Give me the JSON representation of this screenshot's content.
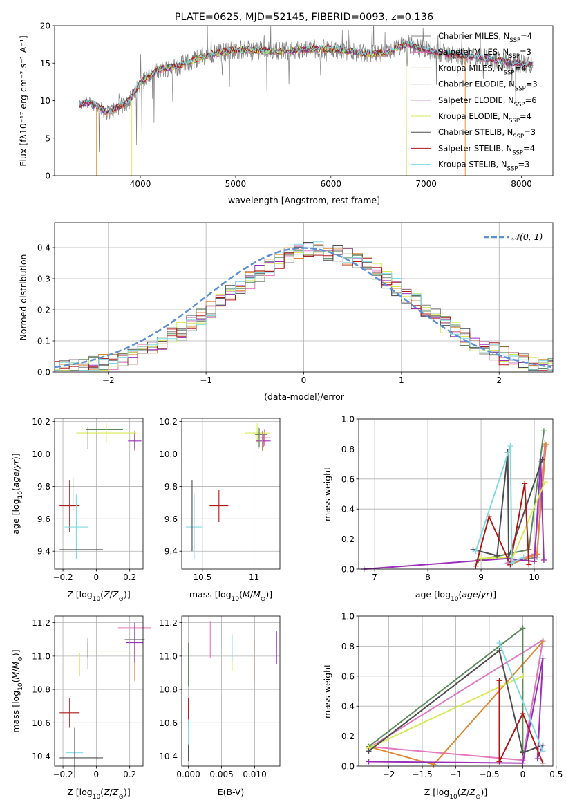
{
  "figure_title": "PLATE=0625, MJD=52145, FIBERID=0093, z=0.136",
  "colors": {
    "Chabrier MILES": "#808080",
    "Salpeter MILES": "#e377c2",
    "Kroupa MILES": "#e0882f",
    "Chabrier ELODIE": "#5b8a5b",
    "Salpeter ELODIE": "#9b30b8",
    "Kroupa ELODIE": "#d6ea55",
    "Chabrier STELIB": "#4d4d4d",
    "Salpeter STELIB": "#b01818",
    "Kroupa STELIB": "#7fdbe0",
    "normal": "#5b8fd6"
  },
  "chart_data": [
    {
      "id": "spectrum",
      "type": "line",
      "title": "PLATE=0625, MJD=52145, FIBERID=0093, z=0.136",
      "xlabel": "wavelength [Angstrom, rest frame]",
      "ylabel": "Flux [fλ10⁻¹⁷ erg cm⁻² s⁻¹ A⁻¹]",
      "xlim": [
        3100,
        8330
      ],
      "ylim": [
        0,
        20
      ],
      "xticks": [
        4000,
        5000,
        6000,
        7000,
        8000
      ],
      "yticks": [
        0,
        5,
        10,
        15,
        20
      ],
      "legend_position": "right",
      "legend": [
        {
          "base": "Chabrier MILES, N",
          "sub": "SSP",
          "tail": "=4"
        },
        {
          "base": "Salpeter MILES, N",
          "sub": "SSP",
          "tail": "=3"
        },
        {
          "base": "Kroupa MILES, N",
          "sub": "SSP",
          "tail": "=4"
        },
        {
          "base": "Chabrier ELODIE, N",
          "sub": "SSP",
          "tail": "=3"
        },
        {
          "base": "Salpeter ELODIE, N",
          "sub": "SSP",
          "tail": "=6"
        },
        {
          "base": "Kroupa ELODIE, N",
          "sub": "SSP",
          "tail": "=4"
        },
        {
          "base": "Chabrier STELIB, N",
          "sub": "SSP",
          "tail": "=3"
        },
        {
          "base": "Salpeter STELIB, N",
          "sub": "SSP",
          "tail": "=4"
        },
        {
          "base": "Kroupa STELIB, N",
          "sub": "SSP",
          "tail": "=3"
        }
      ],
      "continuum": [
        [
          3360,
          9.4
        ],
        [
          3450,
          9.8
        ],
        [
          3550,
          9.2
        ],
        [
          3650,
          8.4
        ],
        [
          3760,
          9.0
        ],
        [
          3900,
          10.2
        ],
        [
          4000,
          12.4
        ],
        [
          4200,
          14.2
        ],
        [
          4400,
          14.6
        ],
        [
          4600,
          15.6
        ],
        [
          4800,
          16.3
        ],
        [
          5000,
          16.8
        ],
        [
          5200,
          16.7
        ],
        [
          5500,
          16.6
        ],
        [
          5800,
          16.9
        ],
        [
          6100,
          16.8
        ],
        [
          6400,
          16.2
        ],
        [
          6600,
          16.4
        ],
        [
          6800,
          17.6
        ],
        [
          7000,
          16.7
        ],
        [
          7300,
          16.0
        ],
        [
          7600,
          15.7
        ],
        [
          7900,
          15.0
        ],
        [
          8100,
          14.8
        ]
      ],
      "absorption_dips": [
        [
          3934,
          0.5
        ],
        [
          4340,
          3.5
        ],
        [
          4861,
          2.5
        ],
        [
          5175,
          2.0
        ],
        [
          5890,
          4.0
        ],
        [
          6563,
          2.0
        ],
        [
          6800,
          3.0
        ],
        [
          7600,
          2.0
        ]
      ],
      "truncations": [
        {
          "series": "Kroupa MILES",
          "xmin": 3540,
          "xmax": 7410
        },
        {
          "series": "Kroupa ELODIE",
          "xmin": 3910,
          "xmax": 6795
        },
        {
          "series": "Chabrier MILES",
          "xmin": 3540,
          "xmax": 7410
        }
      ]
    },
    {
      "id": "residuals",
      "type": "histogram",
      "xlabel": "(data-model)/error",
      "ylabel": "Normed distribution",
      "xlim": [
        -2.55,
        2.55
      ],
      "ylim": [
        0,
        0.48
      ],
      "xticks": [
        -2,
        -1,
        0,
        1,
        2
      ],
      "yticks": [
        0.0,
        0.1,
        0.2,
        0.3,
        0.4
      ],
      "grid": true,
      "bin_width": 0.1,
      "reference_curve": {
        "label": "N(0,1)",
        "label_display": "𝒩(0, 1)",
        "mean": 0,
        "sigma": 1
      }
    },
    {
      "id": "age_vs_Z",
      "type": "errorbar",
      "xlabel": "Z [log₁₀(Z/Z⊙)]",
      "ylabel": "age  [log₁₀(age/yr)]",
      "xlim": [
        -0.25,
        0.28
      ],
      "ylim": [
        9.29,
        10.22
      ],
      "xticks": [
        -0.2,
        0.0,
        0.2
      ],
      "yticks": [
        9.4,
        9.6,
        9.8,
        10.0,
        10.2
      ],
      "grid": true,
      "points": [
        {
          "series": "Chabrier MILES",
          "x": -0.12,
          "y": 10.12,
          "xerr": 0.0,
          "yerr": 0.0
        },
        {
          "series": "Salpeter MILES",
          "x": 0.23,
          "y": 10.08,
          "xerr": 0.005,
          "yerr": 0.06
        },
        {
          "series": "Kroupa MILES",
          "x": 0.23,
          "y": 10.08,
          "xerr": 0.005,
          "yerr": 0.06
        },
        {
          "series": "Chabrier ELODIE",
          "x": 0.05,
          "y": 10.15,
          "xerr": 0.11,
          "yerr": 0.0
        },
        {
          "series": "Salpeter ELODIE",
          "x": 0.23,
          "y": 10.08,
          "xerr": 0.04,
          "yerr": 0.05
        },
        {
          "series": "Kroupa ELODIE",
          "x": 0.06,
          "y": 10.13,
          "xerr": 0.18,
          "yerr": 0.06
        },
        {
          "series": "Chabrier STELIB",
          "x": -0.05,
          "y": 10.1,
          "xerr": 0.0,
          "yerr": 0.07
        },
        {
          "series": "Salpeter STELIB",
          "x": -0.16,
          "y": 9.68,
          "xerr": 0.06,
          "yerr": 0.16
        },
        {
          "series": "Kroupa STELIB",
          "x": -0.12,
          "y": 9.55,
          "xerr": 0.07,
          "yerr": 0.2
        },
        {
          "series": "Chabrier STELIB",
          "x": -0.09,
          "y": 9.41,
          "xerr": 0.13,
          "yerr": 0.0
        },
        {
          "series": "Chabrier STELIB",
          "x": -0.14,
          "y": 9.75,
          "xerr": 0.0,
          "yerr": 0.1
        }
      ]
    },
    {
      "id": "age_vs_mass",
      "type": "errorbar",
      "xlabel": "mass [log₁₀(M/M⊙)]",
      "ylabel": "",
      "xlim": [
        10.3,
        11.25
      ],
      "ylim": [
        9.29,
        10.22
      ],
      "xticks": [
        10.5,
        11.0
      ],
      "yticks": [
        9.4,
        9.6,
        9.8,
        10.0,
        10.2
      ],
      "grid": true,
      "points": [
        {
          "series": "Salpeter MILES",
          "x": 11.1,
          "y": 10.1,
          "xerr": 0.06,
          "yerr": 0.05
        },
        {
          "series": "Kroupa ELODIE",
          "x": 11.03,
          "y": 10.13,
          "xerr": 0.12,
          "yerr": 0.06
        },
        {
          "series": "Chabrier MILES",
          "x": 11.07,
          "y": 10.12,
          "xerr": 0.06,
          "yerr": 0.0
        },
        {
          "series": "Salpeter ELODIE",
          "x": 11.09,
          "y": 10.08,
          "xerr": 0.07,
          "yerr": 0.04
        },
        {
          "series": "Chabrier ELODIE",
          "x": 11.05,
          "y": 10.1,
          "xerr": 0.0,
          "yerr": 0.06
        },
        {
          "series": "Kroupa MILES",
          "x": 11.08,
          "y": 10.08,
          "xerr": 0.0,
          "yerr": 0.06
        },
        {
          "series": "Chabrier STELIB",
          "x": 11.04,
          "y": 10.1,
          "xerr": 0.0,
          "yerr": 0.07
        },
        {
          "series": "Salpeter STELIB",
          "x": 10.66,
          "y": 9.68,
          "xerr": 0.09,
          "yerr": 0.1
        },
        {
          "series": "Kroupa STELIB",
          "x": 10.42,
          "y": 9.55,
          "xerr": 0.08,
          "yerr": 0.2
        },
        {
          "series": "Chabrier STELIB",
          "x": 10.4,
          "y": 9.62,
          "xerr": 0.0,
          "yerr": 0.22
        }
      ]
    },
    {
      "id": "massweight_vs_age",
      "type": "line",
      "xlabel": "age  [log₁₀(age/yr)]",
      "ylabel": "mass weight",
      "xlim": [
        6.7,
        10.35
      ],
      "ylim": [
        0,
        1.0
      ],
      "xticks": [
        7,
        8,
        9,
        10
      ],
      "yticks": [
        0.0,
        0.2,
        0.4,
        0.6,
        0.8,
        1.0
      ],
      "grid": true,
      "series": [
        {
          "name": "Chabrier MILES",
          "points": [
            [
              9.52,
              0.04
            ],
            [
              10.05,
              0.08
            ],
            [
              10.2,
              0.84
            ]
          ]
        },
        {
          "name": "Salpeter MILES",
          "points": [
            [
              9.5,
              0.04
            ],
            [
              10.0,
              0.1
            ],
            [
              10.2,
              0.82
            ]
          ]
        },
        {
          "name": "Kroupa MILES",
          "points": [
            [
              9.55,
              0.03
            ],
            [
              10.05,
              0.1
            ],
            [
              10.22,
              0.83
            ]
          ]
        },
        {
          "name": "Chabrier ELODIE",
          "points": [
            [
              8.95,
              0.06
            ],
            [
              9.9,
              0.13
            ],
            [
              10.18,
              0.92
            ]
          ]
        },
        {
          "name": "Salpeter ELODIE",
          "points": [
            [
              6.8,
              0.0
            ],
            [
              9.5,
              0.07
            ],
            [
              10.0,
              0.05
            ],
            [
              10.12,
              0.72
            ],
            [
              10.18,
              0.06
            ]
          ]
        },
        {
          "name": "Kroupa ELODIE",
          "points": [
            [
              9.0,
              0.07
            ],
            [
              9.6,
              0.08
            ],
            [
              10.2,
              0.58
            ]
          ]
        },
        {
          "name": "Chabrier STELIB",
          "points": [
            [
              8.85,
              0.13
            ],
            [
              9.3,
              0.09
            ],
            [
              9.5,
              0.78
            ],
            [
              9.52,
              0.08
            ],
            [
              10.15,
              0.73
            ]
          ]
        },
        {
          "name": "Salpeter STELIB",
          "points": [
            [
              8.9,
              0.02
            ],
            [
              9.15,
              0.35
            ],
            [
              9.55,
              0.03
            ],
            [
              9.82,
              0.57
            ],
            [
              9.9,
              0.03
            ]
          ]
        },
        {
          "name": "Kroupa STELIB",
          "points": [
            [
              8.9,
              0.12
            ],
            [
              9.55,
              0.82
            ],
            [
              9.58,
              0.04
            ],
            [
              9.8,
              0.08
            ]
          ]
        }
      ]
    },
    {
      "id": "mass_vs_Z",
      "type": "errorbar",
      "xlabel": "Z [log₁₀(Z/Z⊙)]",
      "ylabel": "mass [log₁₀(M/M⊙)]",
      "xlim": [
        -0.25,
        0.28
      ],
      "ylim": [
        10.34,
        11.24
      ],
      "xticks": [
        -0.2,
        0.0,
        0.2
      ],
      "yticks": [
        10.4,
        10.6,
        10.8,
        11.0,
        11.2
      ],
      "grid": true,
      "points": [
        {
          "series": "Salpeter MILES",
          "x": 0.23,
          "y": 11.17,
          "xerr": 0.1,
          "yerr": 0.0
        },
        {
          "series": "Chabrier MILES",
          "x": 0.23,
          "y": 11.1,
          "xerr": 0.06,
          "yerr": 0.08
        },
        {
          "series": "Kroupa MILES",
          "x": 0.23,
          "y": 10.95,
          "xerr": 0.0,
          "yerr": 0.1
        },
        {
          "series": "Salpeter ELODIE",
          "x": 0.23,
          "y": 11.08,
          "xerr": 0.05,
          "yerr": 0.12
        },
        {
          "series": "Kroupa ELODIE",
          "x": 0.06,
          "y": 11.03,
          "xerr": 0.18,
          "yerr": 0.0
        },
        {
          "series": "Kroupa ELODIE",
          "x": -0.1,
          "y": 10.95,
          "xerr": 0.0,
          "yerr": 0.07
        },
        {
          "series": "Chabrier ELODIE",
          "x": -0.05,
          "y": 11.0,
          "xerr": 0.0,
          "yerr": 0.08
        },
        {
          "series": "Chabrier STELIB",
          "x": -0.05,
          "y": 11.05,
          "xerr": 0.0,
          "yerr": 0.06
        },
        {
          "series": "Salpeter STELIB",
          "x": -0.16,
          "y": 10.66,
          "xerr": 0.06,
          "yerr": 0.09
        },
        {
          "series": "Kroupa STELIB",
          "x": -0.13,
          "y": 10.42,
          "xerr": 0.05,
          "yerr": 0.0
        },
        {
          "series": "Chabrier STELIB",
          "x": -0.13,
          "y": 10.42,
          "xerr": 0.0,
          "yerr": 0.15
        },
        {
          "series": "Chabrier STELIB",
          "x": -0.09,
          "y": 10.39,
          "xerr": 0.13,
          "yerr": 0.0
        }
      ]
    },
    {
      "id": "mass_vs_ebv",
      "type": "errorbar",
      "xlabel": "E(B-V)",
      "ylabel": "",
      "xlim": [
        -0.001,
        0.0138
      ],
      "ylim": [
        10.34,
        11.24
      ],
      "xticks": [
        0.0,
        0.005,
        0.01
      ],
      "xticklabels": [
        "0.000",
        "0.005",
        "0.010"
      ],
      "yticks": [
        10.4,
        10.6,
        10.8,
        11.0,
        11.2
      ],
      "grid": true,
      "points": [
        {
          "series": "Chabrier ELODIE",
          "x": 0.0,
          "y": 10.95,
          "xerr": 0.0,
          "yerr": 0.13
        },
        {
          "series": "Salpeter STELIB",
          "x": 0.0,
          "y": 10.66,
          "xerr": 0.0,
          "yerr": 0.09
        },
        {
          "series": "Kroupa STELIB",
          "x": 0.0,
          "y": 10.5,
          "xerr": 0.0,
          "yerr": 0.12
        },
        {
          "series": "Chabrier STELIB",
          "x": 0.0,
          "y": 10.42,
          "xerr": 0.0,
          "yerr": 0.05
        },
        {
          "series": "Salpeter MILES",
          "x": 0.0033,
          "y": 11.1,
          "xerr": 0.0,
          "yerr": 0.11
        },
        {
          "series": "Kroupa ELODIE",
          "x": 0.0066,
          "y": 11.01,
          "xerr": 0.0,
          "yerr": 0.1
        },
        {
          "series": "Kroupa STELIB",
          "x": 0.0066,
          "y": 11.05,
          "xerr": 0.0,
          "yerr": 0.08
        },
        {
          "series": "Kroupa MILES",
          "x": 0.0099,
          "y": 10.97,
          "xerr": 0.0,
          "yerr": 0.13
        },
        {
          "series": "Salpeter ELODIE",
          "x": 0.0133,
          "y": 11.05,
          "xerr": 0.0,
          "yerr": 0.1
        }
      ]
    },
    {
      "id": "massweight_vs_Z",
      "type": "line",
      "xlabel": "Z [log₁₀(Z/Z⊙)]",
      "ylabel": "mass weight",
      "xlim": [
        -2.45,
        0.45
      ],
      "ylim": [
        0,
        1.0
      ],
      "xticks": [
        -2.0,
        -1.5,
        -1.0,
        -0.5,
        0.0,
        0.5
      ],
      "yticks": [
        0.0,
        0.2,
        0.4,
        0.6,
        0.8,
        1.0
      ],
      "grid": true,
      "series": [
        {
          "name": "Chabrier MILES",
          "points": [
            [
              0.0,
              0.04
            ],
            [
              0.3,
              0.84
            ]
          ]
        },
        {
          "name": "Salpeter MILES",
          "points": [
            [
              -2.3,
              0.13
            ],
            [
              0.0,
              0.04
            ],
            [
              0.3,
              0.84
            ],
            [
              -2.3,
              0.12
            ]
          ]
        },
        {
          "name": "Kroupa MILES",
          "points": [
            [
              -2.3,
              0.13
            ],
            [
              -1.33,
              0.01
            ],
            [
              0.3,
              0.83
            ]
          ]
        },
        {
          "name": "Chabrier ELODIE",
          "points": [
            [
              -2.3,
              0.13
            ],
            [
              0.0,
              0.92
            ],
            [
              0.0,
              0.1
            ]
          ]
        },
        {
          "name": "Salpeter ELODIE",
          "points": [
            [
              -2.3,
              0.03
            ],
            [
              0.0,
              0.02
            ],
            [
              0.3,
              0.72
            ],
            [
              0.22,
              0.05
            ],
            [
              0.3,
              0.14
            ]
          ]
        },
        {
          "name": "Kroupa ELODIE",
          "points": [
            [
              -2.3,
              0.12
            ],
            [
              0.0,
              0.6
            ]
          ]
        },
        {
          "name": "Chabrier STELIB",
          "points": [
            [
              -2.3,
              0.1
            ],
            [
              -0.35,
              0.77
            ],
            [
              0.0,
              0.09
            ],
            [
              0.3,
              0.14
            ]
          ]
        },
        {
          "name": "Salpeter STELIB",
          "points": [
            [
              -0.35,
              0.57
            ],
            [
              -0.35,
              0.03
            ],
            [
              0.0,
              0.35
            ],
            [
              0.3,
              0.02
            ]
          ]
        },
        {
          "name": "Kroupa STELIB",
          "points": [
            [
              -0.35,
              0.82
            ],
            [
              0.3,
              0.1
            ]
          ]
        }
      ]
    }
  ]
}
